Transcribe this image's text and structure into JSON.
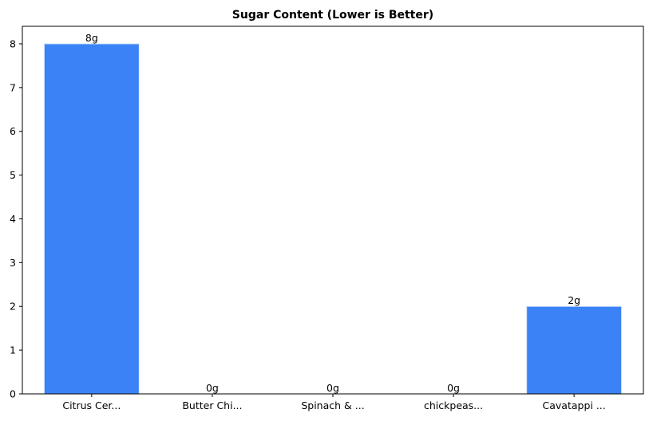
{
  "chart_data": {
    "type": "bar",
    "title": "Sugar Content (Lower is Better)",
    "xlabel": "",
    "ylabel": "",
    "categories": [
      "Citrus Cer...",
      "Butter Chi...",
      "Spinach & ...",
      "chickpeas...",
      "Cavatappi ..."
    ],
    "values": [
      8,
      0,
      0,
      0,
      2
    ],
    "data_labels": [
      "8g",
      "0g",
      "0g",
      "0g",
      "2g"
    ],
    "ylim": [
      0,
      8.4
    ],
    "yticks": [
      0,
      1,
      2,
      3,
      4,
      5,
      6,
      7,
      8
    ],
    "grid": false,
    "legend": "none",
    "bar_color": "#3b82f6",
    "bar_edge_color": "#d4e4fb"
  }
}
